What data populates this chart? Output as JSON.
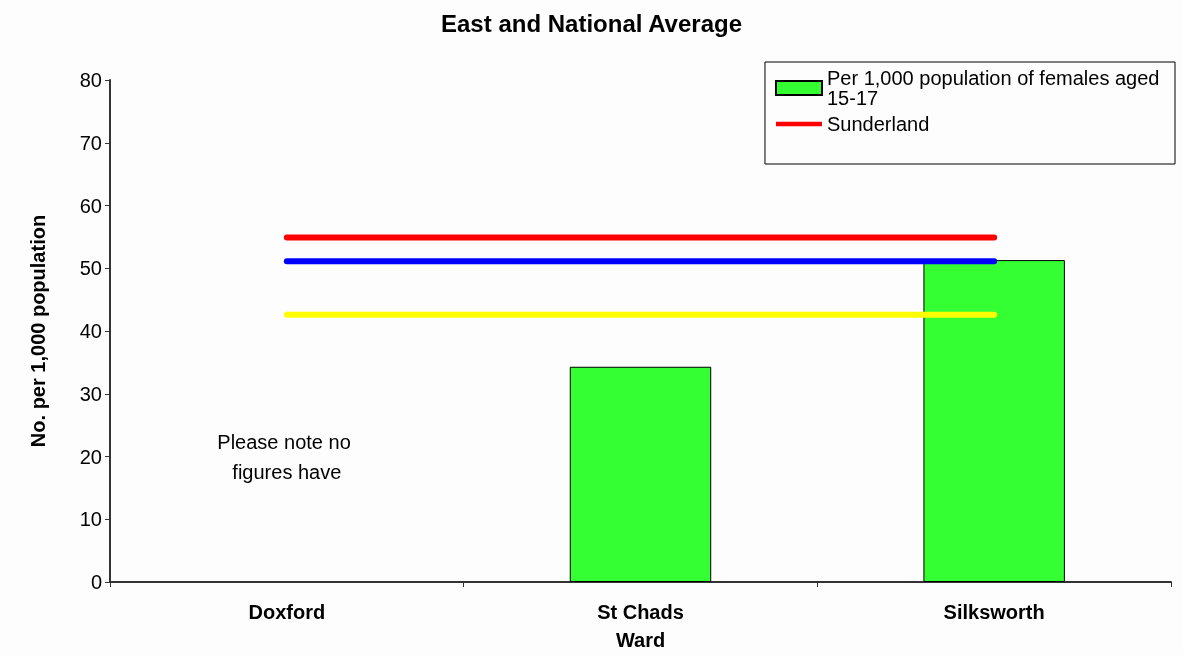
{
  "chart_data": {
    "type": "bar",
    "title": "East and National Average",
    "xlabel": "Ward",
    "ylabel": "No. per 1,000 population",
    "categories": [
      "Doxford",
      "St Chads",
      "Silksworth"
    ],
    "series": [
      {
        "name": "Per 1,000 population of females aged 15-17",
        "color": "#33ff33",
        "values": [
          null,
          34.3,
          51.3
        ]
      },
      {
        "type": "line",
        "name": "Sunderland",
        "color": "#ff0000",
        "values": [
          54.9,
          54.9,
          54.9
        ]
      },
      {
        "type": "line",
        "color": "#0000ff",
        "values": [
          51.1,
          51.1,
          51.1
        ]
      },
      {
        "type": "line",
        "color": "#ffff00",
        "values": [
          42.6,
          42.6,
          42.6
        ]
      }
    ],
    "ylim": [
      0,
      80
    ],
    "yticks": [
      0,
      10,
      20,
      30,
      40,
      50,
      60,
      70,
      80
    ],
    "annotations": [
      "Please note no figures have"
    ],
    "grid": false,
    "legend": "top right",
    "marker": "none",
    "line_style": "solid"
  }
}
